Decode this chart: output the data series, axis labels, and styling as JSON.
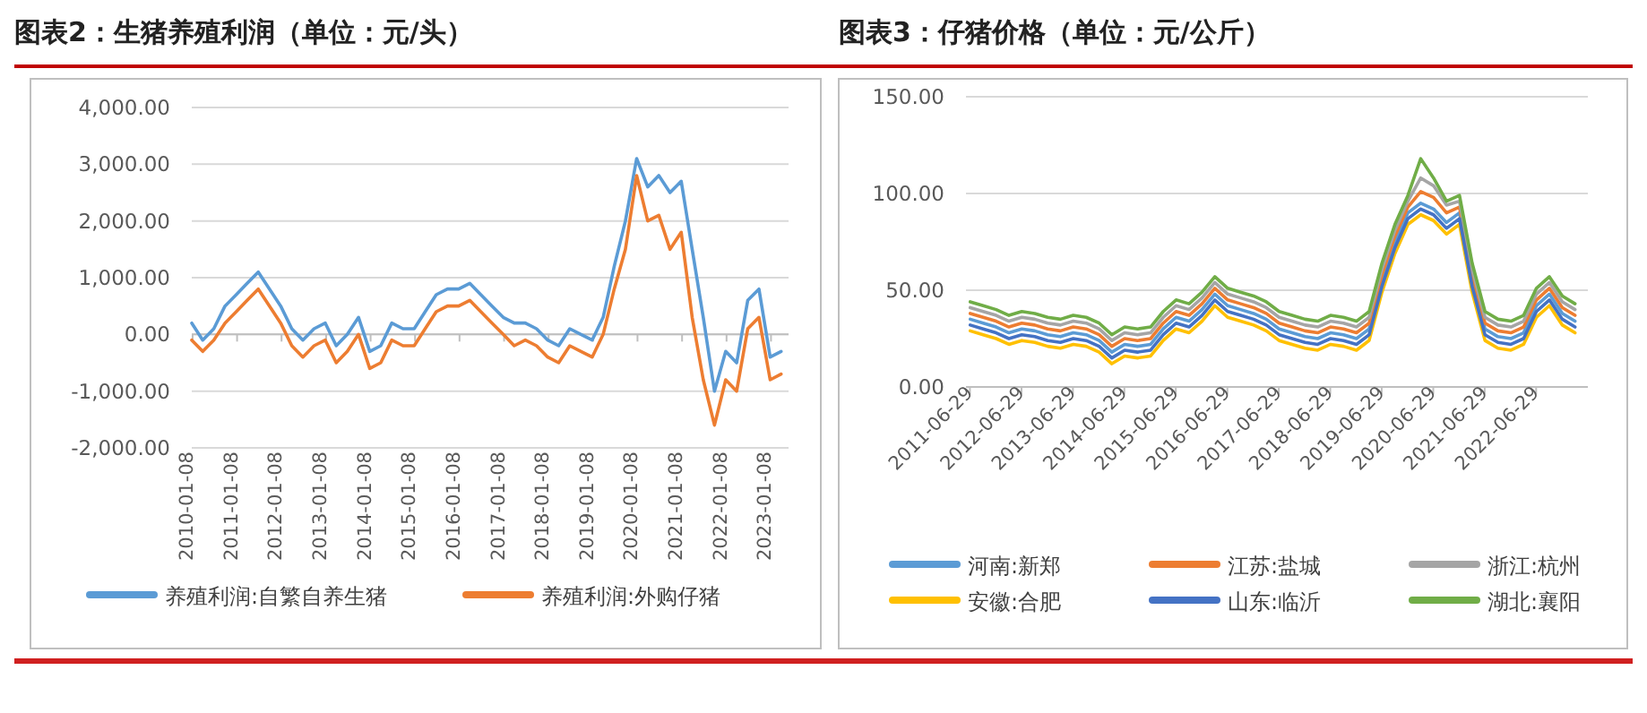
{
  "chart_data": [
    {
      "type": "line",
      "title": "图表2：生猪养殖利润（单位：元/头）",
      "grid": "y",
      "legend": "bottom",
      "x": [
        "2010-01",
        "2010-04",
        "2010-07",
        "2010-10",
        "2011-01",
        "2011-04",
        "2011-07",
        "2011-10",
        "2012-01",
        "2012-04",
        "2012-07",
        "2012-10",
        "2013-01",
        "2013-04",
        "2013-07",
        "2013-10",
        "2014-01",
        "2014-04",
        "2014-07",
        "2014-10",
        "2015-01",
        "2015-04",
        "2015-07",
        "2015-10",
        "2016-01",
        "2016-04",
        "2016-07",
        "2016-10",
        "2017-01",
        "2017-04",
        "2017-07",
        "2017-10",
        "2018-01",
        "2018-04",
        "2018-07",
        "2018-10",
        "2019-01",
        "2019-04",
        "2019-07",
        "2019-10",
        "2020-01",
        "2020-04",
        "2020-07",
        "2020-10",
        "2021-01",
        "2021-04",
        "2021-07",
        "2021-10",
        "2022-01",
        "2022-04",
        "2022-07",
        "2022-10",
        "2023-01",
        "2023-04"
      ],
      "series": [
        {
          "name": "养殖利润:自繁自养生猪",
          "color": "#5b9bd5",
          "values": [
            200,
            -100,
            100,
            500,
            700,
            900,
            1100,
            800,
            500,
            100,
            -100,
            100,
            200,
            -200,
            0,
            300,
            -300,
            -200,
            200,
            100,
            100,
            400,
            700,
            800,
            800,
            900,
            700,
            500,
            300,
            200,
            200,
            100,
            -100,
            -200,
            100,
            0,
            -100,
            300,
            1200,
            2000,
            3100,
            2600,
            2800,
            2500,
            2700,
            1500,
            300,
            -1000,
            -300,
            -500,
            600,
            800,
            -400,
            -300
          ]
        },
        {
          "name": "养殖利润:外购仔猪",
          "color": "#ed7d31",
          "values": [
            -100,
            -300,
            -100,
            200,
            400,
            600,
            800,
            500,
            200,
            -200,
            -400,
            -200,
            -100,
            -500,
            -300,
            0,
            -600,
            -500,
            -100,
            -200,
            -200,
            100,
            400,
            500,
            500,
            600,
            400,
            200,
            0,
            -200,
            -100,
            -200,
            -400,
            -500,
            -200,
            -300,
            -400,
            0,
            800,
            1500,
            2800,
            2000,
            2100,
            1500,
            1800,
            300,
            -800,
            -1600,
            -800,
            -1000,
            100,
            300,
            -800,
            -700
          ]
        }
      ],
      "xlim": [
        "2010-01",
        "2023-06"
      ],
      "xticks": [
        "2010-01-08",
        "2011-01-08",
        "2012-01-08",
        "2013-01-08",
        "2014-01-08",
        "2015-01-08",
        "2016-01-08",
        "2017-01-08",
        "2018-01-08",
        "2019-01-08",
        "2020-01-08",
        "2021-01-08",
        "2022-01-08",
        "2023-01-08"
      ],
      "ylim": [
        -2000,
        4000
      ],
      "yticks": [
        {
          "value": -2000,
          "label": "-2,000.00"
        },
        {
          "value": -1000,
          "label": "-1,000.00"
        },
        {
          "value": 0,
          "label": "0.00"
        },
        {
          "value": 1000,
          "label": "1,000.00"
        },
        {
          "value": 2000,
          "label": "2,000.00"
        },
        {
          "value": 3000,
          "label": "3,000.00"
        },
        {
          "value": 4000,
          "label": "4,000.00"
        }
      ]
    },
    {
      "type": "line",
      "title": "图表3：仔猪价格（单位：元/公斤）",
      "grid": "y",
      "legend": "bottom",
      "x": [
        "2011-07",
        "2011-10",
        "2012-01",
        "2012-04",
        "2012-07",
        "2012-10",
        "2013-01",
        "2013-04",
        "2013-07",
        "2013-10",
        "2014-01",
        "2014-04",
        "2014-07",
        "2014-10",
        "2015-01",
        "2015-04",
        "2015-07",
        "2015-10",
        "2016-01",
        "2016-04",
        "2016-07",
        "2016-10",
        "2017-01",
        "2017-04",
        "2017-07",
        "2017-10",
        "2018-01",
        "2018-04",
        "2018-07",
        "2018-10",
        "2019-01",
        "2019-04",
        "2019-07",
        "2019-10",
        "2020-01",
        "2020-04",
        "2020-07",
        "2020-10",
        "2021-01",
        "2021-04",
        "2021-07",
        "2021-10",
        "2022-01",
        "2022-04",
        "2022-07",
        "2022-10",
        "2023-01",
        "2023-04"
      ],
      "series": [
        {
          "name": "河南:新郑",
          "color": "#5b9bd5",
          "values": [
            35,
            33,
            31,
            28,
            30,
            29,
            27,
            26,
            28,
            27,
            24,
            18,
            22,
            21,
            22,
            30,
            36,
            34,
            40,
            48,
            42,
            40,
            38,
            35,
            30,
            28,
            26,
            25,
            28,
            27,
            25,
            30,
            55,
            75,
            90,
            95,
            92,
            85,
            90,
            55,
            30,
            26,
            25,
            28,
            42,
            48,
            38,
            34
          ]
        },
        {
          "name": "江苏:盐城",
          "color": "#ed7d31",
          "values": [
            38,
            36,
            34,
            31,
            33,
            32,
            30,
            29,
            31,
            30,
            27,
            21,
            25,
            24,
            25,
            33,
            39,
            37,
            43,
            51,
            45,
            43,
            41,
            38,
            33,
            31,
            29,
            28,
            31,
            30,
            28,
            33,
            58,
            78,
            93,
            101,
            98,
            90,
            93,
            58,
            33,
            29,
            28,
            31,
            45,
            51,
            41,
            37
          ]
        },
        {
          "name": "浙江:杭州",
          "color": "#a5a5a5",
          "values": [
            41,
            39,
            37,
            34,
            36,
            35,
            33,
            32,
            34,
            33,
            30,
            24,
            28,
            27,
            28,
            36,
            42,
            40,
            46,
            54,
            48,
            46,
            44,
            41,
            36,
            34,
            32,
            31,
            34,
            33,
            31,
            36,
            61,
            81,
            96,
            108,
            104,
            94,
            96,
            61,
            36,
            32,
            31,
            34,
            48,
            54,
            44,
            40
          ]
        },
        {
          "name": "安徽:合肥",
          "color": "#ffc000",
          "values": [
            29,
            27,
            25,
            22,
            24,
            23,
            21,
            20,
            22,
            21,
            18,
            12,
            16,
            15,
            16,
            24,
            30,
            28,
            34,
            42,
            36,
            34,
            32,
            29,
            24,
            22,
            20,
            19,
            22,
            21,
            19,
            24,
            49,
            69,
            84,
            89,
            86,
            79,
            84,
            49,
            24,
            20,
            19,
            22,
            36,
            42,
            32,
            28
          ]
        },
        {
          "name": "山东:临沂",
          "color": "#4472c4",
          "values": [
            32,
            30,
            28,
            25,
            27,
            26,
            24,
            23,
            25,
            24,
            21,
            15,
            19,
            18,
            19,
            27,
            33,
            31,
            37,
            45,
            39,
            37,
            35,
            32,
            27,
            25,
            23,
            22,
            25,
            24,
            22,
            27,
            52,
            72,
            87,
            92,
            89,
            82,
            87,
            52,
            27,
            23,
            22,
            25,
            39,
            45,
            35,
            31
          ]
        },
        {
          "name": "湖北:襄阳",
          "color": "#70ad47",
          "values": [
            44,
            42,
            40,
            37,
            39,
            38,
            36,
            35,
            37,
            36,
            33,
            27,
            31,
            30,
            31,
            39,
            45,
            43,
            49,
            57,
            51,
            49,
            47,
            44,
            39,
            37,
            35,
            34,
            37,
            36,
            34,
            39,
            64,
            84,
            99,
            118,
            108,
            96,
            99,
            64,
            39,
            35,
            34,
            37,
            51,
            57,
            47,
            43
          ]
        }
      ],
      "xlim": [
        "2011-06",
        "2023-07"
      ],
      "xticks": [
        "2011-06-29",
        "2012-06-29",
        "2013-06-29",
        "2014-06-29",
        "2015-06-29",
        "2016-06-29",
        "2017-06-29",
        "2018-06-29",
        "2019-06-29",
        "2020-06-29",
        "2021-06-29",
        "2022-06-29"
      ],
      "ylim": [
        0,
        150
      ],
      "yticks": [
        {
          "value": 0,
          "label": "0.00"
        },
        {
          "value": 50,
          "label": "50.00"
        },
        {
          "value": 100,
          "label": "100.00"
        },
        {
          "value": 150,
          "label": "150.00"
        }
      ]
    }
  ]
}
